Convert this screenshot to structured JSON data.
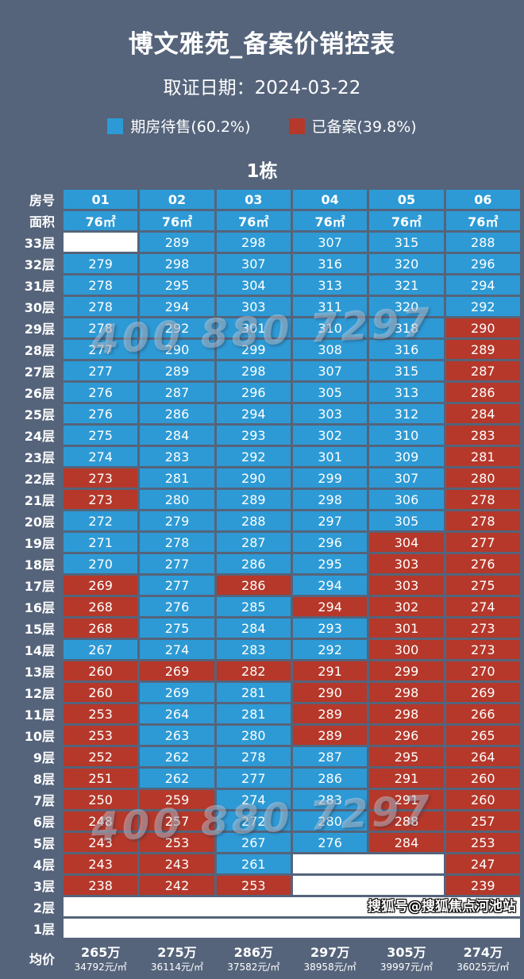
{
  "header": {
    "title": "博文雅苑_备案价销控表",
    "cert_date_label": "取证日期：",
    "cert_date": "2024-03-22"
  },
  "watermark": {
    "text": "400 880 7297"
  },
  "footer": {
    "text": "搜狐号@搜狐焦点河池站"
  },
  "colors": {
    "background": "#55647b",
    "for_sale": "#2d9ad5",
    "registered": "#b5382a",
    "empty_cell": "#ffffff"
  },
  "chart_data": {
    "type": "table",
    "title": "博文雅苑_备案价销控表",
    "subtitle": "取证日期：2024-03-22",
    "building": "1栋",
    "legend": [
      {
        "label": "期房待售(60.2%)",
        "status_code": "b",
        "color": "#2d9ad5"
      },
      {
        "label": "已备案(39.8%)",
        "status_code": "r",
        "color": "#b5382a"
      }
    ],
    "status_codes": {
      "b": "期房待售",
      "r": "已备案",
      "e": "空白"
    },
    "row_header_label": "房号",
    "area_header_label": "面积",
    "columns": [
      "01",
      "02",
      "03",
      "04",
      "05",
      "06"
    ],
    "areas": [
      "76㎡",
      "76㎡",
      "76㎡",
      "76㎡",
      "76㎡",
      "76㎡"
    ],
    "floors": [
      {
        "label": "33层",
        "prices": [
          null,
          289,
          298,
          307,
          315,
          288
        ],
        "status": "ebbbbb"
      },
      {
        "label": "32层",
        "prices": [
          279,
          298,
          307,
          316,
          320,
          296
        ],
        "status": "bbbbbb"
      },
      {
        "label": "31层",
        "prices": [
          278,
          295,
          304,
          313,
          321,
          294
        ],
        "status": "bbbbbb"
      },
      {
        "label": "30层",
        "prices": [
          278,
          294,
          303,
          311,
          320,
          292
        ],
        "status": "bbbbbb"
      },
      {
        "label": "29层",
        "prices": [
          278,
          292,
          301,
          310,
          318,
          290
        ],
        "status": "bbbbbr"
      },
      {
        "label": "28层",
        "prices": [
          277,
          290,
          299,
          308,
          316,
          289
        ],
        "status": "bbbbbr"
      },
      {
        "label": "27层",
        "prices": [
          277,
          289,
          298,
          307,
          315,
          287
        ],
        "status": "bbbbbr"
      },
      {
        "label": "26层",
        "prices": [
          276,
          287,
          296,
          305,
          313,
          286
        ],
        "status": "bbbbbr"
      },
      {
        "label": "25层",
        "prices": [
          276,
          286,
          294,
          303,
          312,
          284
        ],
        "status": "bbbbbr"
      },
      {
        "label": "24层",
        "prices": [
          275,
          284,
          293,
          302,
          310,
          283
        ],
        "status": "bbbbbr"
      },
      {
        "label": "23层",
        "prices": [
          274,
          283,
          292,
          301,
          309,
          281
        ],
        "status": "bbbbbr"
      },
      {
        "label": "22层",
        "prices": [
          273,
          281,
          290,
          299,
          307,
          280
        ],
        "status": "rbbbbr"
      },
      {
        "label": "21层",
        "prices": [
          273,
          280,
          289,
          298,
          306,
          278
        ],
        "status": "rbbbbr"
      },
      {
        "label": "20层",
        "prices": [
          272,
          279,
          288,
          297,
          305,
          278
        ],
        "status": "bbbbbr"
      },
      {
        "label": "19层",
        "prices": [
          271,
          278,
          287,
          296,
          304,
          277
        ],
        "status": "bbbbrr"
      },
      {
        "label": "18层",
        "prices": [
          270,
          277,
          286,
          295,
          303,
          276
        ],
        "status": "bbbbrr"
      },
      {
        "label": "17层",
        "prices": [
          269,
          277,
          286,
          294,
          303,
          275
        ],
        "status": "rbrbrr"
      },
      {
        "label": "16层",
        "prices": [
          268,
          276,
          285,
          294,
          302,
          274
        ],
        "status": "rbbrrr"
      },
      {
        "label": "15层",
        "prices": [
          268,
          275,
          284,
          293,
          301,
          273
        ],
        "status": "rbbbrr"
      },
      {
        "label": "14层",
        "prices": [
          267,
          274,
          283,
          292,
          300,
          273
        ],
        "status": "bbbbrr"
      },
      {
        "label": "13层",
        "prices": [
          260,
          269,
          282,
          291,
          299,
          270
        ],
        "status": "rrrrrr"
      },
      {
        "label": "12层",
        "prices": [
          260,
          269,
          281,
          290,
          298,
          269
        ],
        "status": "rbbrrr"
      },
      {
        "label": "11层",
        "prices": [
          253,
          264,
          281,
          289,
          298,
          266
        ],
        "status": "rbbrrr"
      },
      {
        "label": "10层",
        "prices": [
          253,
          263,
          280,
          289,
          296,
          265
        ],
        "status": "rbbrrr"
      },
      {
        "label": "9层",
        "prices": [
          252,
          262,
          278,
          287,
          295,
          264
        ],
        "status": "rbbbrr"
      },
      {
        "label": "8层",
        "prices": [
          251,
          262,
          277,
          286,
          291,
          260
        ],
        "status": "rbbbrr"
      },
      {
        "label": "7层",
        "prices": [
          250,
          259,
          274,
          283,
          291,
          260
        ],
        "status": "rrbbrr"
      },
      {
        "label": "6层",
        "prices": [
          248,
          257,
          272,
          280,
          288,
          257
        ],
        "status": "rrbbrr"
      },
      {
        "label": "5层",
        "prices": [
          243,
          253,
          267,
          276,
          284,
          253
        ],
        "status": "rrbbrr"
      },
      {
        "label": "4层",
        "prices": [
          243,
          243,
          261,
          null,
          null,
          247
        ],
        "status": "rrbeer"
      },
      {
        "label": "3层",
        "prices": [
          238,
          242,
          253,
          null,
          null,
          239
        ],
        "status": "rrreer"
      },
      {
        "label": "2层",
        "prices": [
          null,
          null,
          null,
          null,
          null,
          null
        ],
        "status": "eeeeee"
      },
      {
        "label": "1层",
        "prices": [
          null,
          null,
          null,
          null,
          null,
          null
        ],
        "status": "eeeeee"
      }
    ],
    "average": {
      "label": "均价",
      "values": [
        {
          "total": "265万",
          "unit": "34792元/㎡"
        },
        {
          "total": "275万",
          "unit": "36114元/㎡"
        },
        {
          "total": "286万",
          "unit": "37582元/㎡"
        },
        {
          "total": "297万",
          "unit": "38958元/㎡"
        },
        {
          "total": "305万",
          "unit": "39997元/㎡"
        },
        {
          "total": "274万",
          "unit": "36025元/㎡"
        }
      ]
    }
  }
}
